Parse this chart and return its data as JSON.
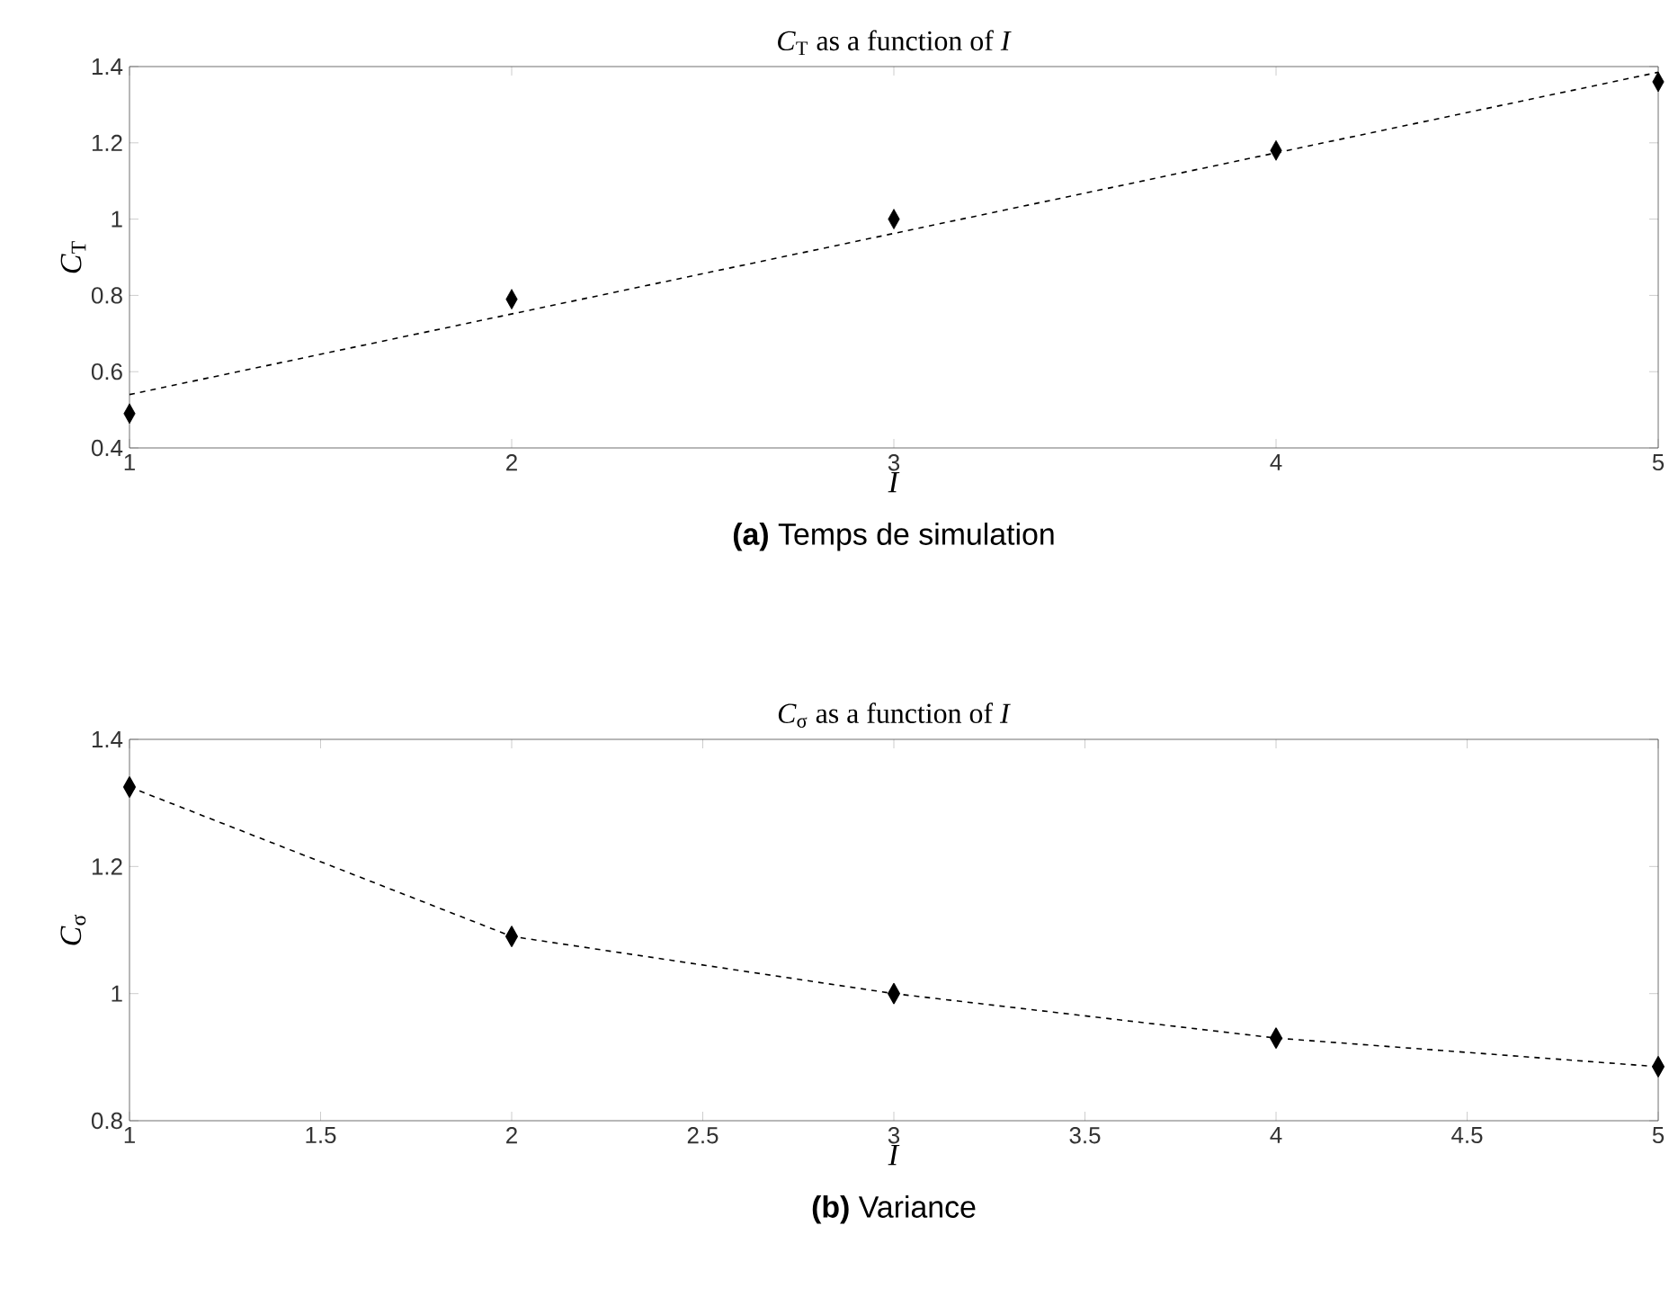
{
  "chart_data": [
    {
      "type": "scatter",
      "title": "*C*$_{T}$ as a function of *I*",
      "xlabel": "*I*",
      "ylabel": "*C*$_{T}$",
      "annotations": [
        "**(a)** Temps de simulation"
      ],
      "x": [
        1,
        2,
        3,
        4,
        5
      ],
      "xlim": [
        1,
        5
      ],
      "ylim": [
        0.4,
        1.4
      ],
      "xticks": [
        1,
        2,
        3,
        4,
        5
      ],
      "yticks": [
        0.4,
        0.6,
        0.8,
        1,
        1.2,
        1.4
      ],
      "marker": "diamond",
      "series": [
        {
          "color": "#000000",
          "values": [
            0.49,
            0.79,
            1.0,
            1.18,
            1.36
          ]
        },
        {
          "type": "line",
          "color": "#000000",
          "x": [
            1,
            5
          ],
          "values": [
            0.54,
            1.385
          ],
          "marker": "none",
          "line_style": "dashed"
        }
      ]
    },
    {
      "type": "line",
      "title": "*C*$_{σ}$ as a function of *I*",
      "xlabel": "*I*",
      "ylabel": "*C*$_{σ}$",
      "annotations": [
        "**(b)** Variance"
      ],
      "x": [
        1,
        2,
        3,
        4,
        5
      ],
      "xlim": [
        1,
        5
      ],
      "ylim": [
        0.8,
        1.4
      ],
      "xticks": [
        1,
        1.5,
        2,
        2.5,
        3,
        3.5,
        4,
        4.5,
        5
      ],
      "yticks": [
        0.8,
        1,
        1.2,
        1.4
      ],
      "marker": "diamond",
      "line_style": "dashed",
      "series": [
        {
          "color": "#000000",
          "values": [
            1.325,
            1.09,
            1.0,
            0.93,
            0.885
          ]
        }
      ]
    }
  ]
}
